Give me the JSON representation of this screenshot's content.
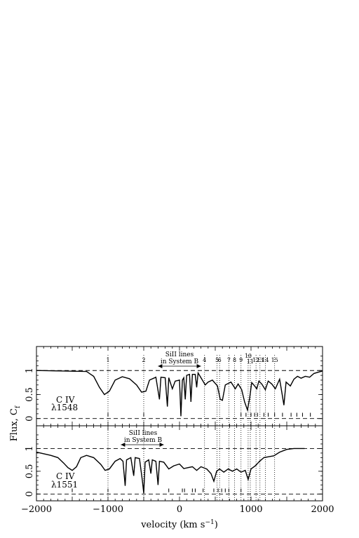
{
  "chart_data": {
    "type": "line",
    "xlabel": "velocity (km s",
    "xlabel_sup": "−1",
    "xlabel_close": ")",
    "ylabel": "Flux, C",
    "ylabel_sub": "f",
    "xlim": [
      -2000,
      2000
    ],
    "x_ticks": [
      -2000,
      -1000,
      0,
      1000,
      2000
    ],
    "x_tick_labels": [
      "−2000",
      "−1000",
      "0",
      "1000",
      "2000"
    ],
    "components": [
      {
        "label": "1",
        "v": -1000
      },
      {
        "label": "2",
        "v": -500
      },
      {
        "label": "4",
        "v": 350
      },
      {
        "label": "5",
        "v": 525
      },
      {
        "label": "6",
        "v": 560
      },
      {
        "label": "7",
        "v": 690
      },
      {
        "label": "8",
        "v": 770
      },
      {
        "label": "9",
        "v": 860
      },
      {
        "label": "10",
        "v": 960
      },
      {
        "label": "11",
        "v": 990
      },
      {
        "label": "12",
        "v": 1070
      },
      {
        "label": "13",
        "v": 1125
      },
      {
        "label": "14",
        "v": 1200
      },
      {
        "label": "15",
        "v": 1330
      }
    ],
    "panels": [
      {
        "name": "top",
        "ion": "C IV",
        "line": "λ1548",
        "ylim": [
          -0.15,
          1.5
        ],
        "y_ticks": [
          0,
          0.5,
          1
        ],
        "y_tick_labels": [
          "0",
          "0.5",
          "1"
        ],
        "annotation_line1": "SiII lines",
        "annotation_line2": "in System B",
        "annotation_range": [
          -300,
          300
        ],
        "ticks_v": [
          -1000,
          -500,
          860,
          930,
          1000,
          1050,
          1090,
          1180,
          1240,
          1330,
          1440,
          1560,
          1640,
          1720,
          1830
        ],
        "spectrum": [
          [
            -2000,
            1.0
          ],
          [
            -1300,
            0.98
          ],
          [
            -1200,
            0.88
          ],
          [
            -1120,
            0.65
          ],
          [
            -1050,
            0.5
          ],
          [
            -980,
            0.57
          ],
          [
            -900,
            0.8
          ],
          [
            -800,
            0.87
          ],
          [
            -700,
            0.83
          ],
          [
            -600,
            0.7
          ],
          [
            -530,
            0.55
          ],
          [
            -470,
            0.57
          ],
          [
            -420,
            0.8
          ],
          [
            -330,
            0.86
          ],
          [
            -280,
            0.4
          ],
          [
            -260,
            0.86
          ],
          [
            -200,
            0.85
          ],
          [
            -170,
            0.25
          ],
          [
            -150,
            0.85
          ],
          [
            -100,
            0.62
          ],
          [
            -60,
            0.78
          ],
          [
            0,
            0.8
          ],
          [
            20,
            0.05
          ],
          [
            40,
            0.8
          ],
          [
            60,
            0.85
          ],
          [
            80,
            0.4
          ],
          [
            100,
            0.9
          ],
          [
            140,
            0.92
          ],
          [
            160,
            0.35
          ],
          [
            180,
            0.92
          ],
          [
            220,
            0.92
          ],
          [
            240,
            0.65
          ],
          [
            260,
            0.95
          ],
          [
            300,
            0.85
          ],
          [
            360,
            0.7
          ],
          [
            400,
            0.76
          ],
          [
            460,
            0.8
          ],
          [
            530,
            0.68
          ],
          [
            570,
            0.4
          ],
          [
            600,
            0.38
          ],
          [
            640,
            0.7
          ],
          [
            720,
            0.76
          ],
          [
            780,
            0.62
          ],
          [
            820,
            0.72
          ],
          [
            870,
            0.6
          ],
          [
            910,
            0.35
          ],
          [
            950,
            0.18
          ],
          [
            980,
            0.42
          ],
          [
            1010,
            0.75
          ],
          [
            1050,
            0.68
          ],
          [
            1080,
            0.62
          ],
          [
            1110,
            0.78
          ],
          [
            1150,
            0.72
          ],
          [
            1200,
            0.6
          ],
          [
            1240,
            0.78
          ],
          [
            1290,
            0.72
          ],
          [
            1340,
            0.62
          ],
          [
            1400,
            0.82
          ],
          [
            1430,
            0.55
          ],
          [
            1460,
            0.28
          ],
          [
            1490,
            0.76
          ],
          [
            1550,
            0.68
          ],
          [
            1600,
            0.82
          ],
          [
            1650,
            0.88
          ],
          [
            1700,
            0.84
          ],
          [
            1760,
            0.88
          ],
          [
            1820,
            0.86
          ],
          [
            1880,
            0.94
          ],
          [
            1950,
            0.97
          ],
          [
            2000,
            0.99
          ]
        ]
      },
      {
        "name": "bottom",
        "ion": "C IV",
        "line": "λ1551",
        "ylim": [
          -0.15,
          1.5
        ],
        "y_ticks": [
          0,
          0.5,
          1
        ],
        "y_tick_labels": [
          "0",
          "0.5",
          "1"
        ],
        "annotation_line1": "SiII lines",
        "annotation_line2": "in System B",
        "annotation_range": [
          -820,
          -220
        ],
        "ticks_v": [
          -1500,
          -1000,
          -500,
          -150,
          40,
          70,
          180,
          220,
          330,
          480,
          540,
          590,
          640,
          690,
          860
        ],
        "spectrum": [
          [
            -2000,
            0.92
          ],
          [
            -1800,
            0.85
          ],
          [
            -1700,
            0.8
          ],
          [
            -1620,
            0.68
          ],
          [
            -1560,
            0.58
          ],
          [
            -1500,
            0.52
          ],
          [
            -1440,
            0.6
          ],
          [
            -1380,
            0.8
          ],
          [
            -1300,
            0.85
          ],
          [
            -1200,
            0.8
          ],
          [
            -1100,
            0.65
          ],
          [
            -1040,
            0.52
          ],
          [
            -980,
            0.55
          ],
          [
            -900,
            0.72
          ],
          [
            -830,
            0.78
          ],
          [
            -790,
            0.72
          ],
          [
            -760,
            0.18
          ],
          [
            -740,
            0.75
          ],
          [
            -680,
            0.8
          ],
          [
            -640,
            0.4
          ],
          [
            -620,
            0.8
          ],
          [
            -560,
            0.78
          ],
          [
            -520,
            0.3
          ],
          [
            -500,
            0.02
          ],
          [
            -480,
            0.7
          ],
          [
            -430,
            0.75
          ],
          [
            -400,
            0.45
          ],
          [
            -380,
            0.75
          ],
          [
            -330,
            0.72
          ],
          [
            -300,
            0.2
          ],
          [
            -280,
            0.72
          ],
          [
            -220,
            0.7
          ],
          [
            -150,
            0.55
          ],
          [
            -80,
            0.62
          ],
          [
            0,
            0.66
          ],
          [
            60,
            0.56
          ],
          [
            120,
            0.58
          ],
          [
            180,
            0.6
          ],
          [
            240,
            0.52
          ],
          [
            300,
            0.6
          ],
          [
            380,
            0.55
          ],
          [
            440,
            0.45
          ],
          [
            480,
            0.28
          ],
          [
            520,
            0.5
          ],
          [
            560,
            0.55
          ],
          [
            620,
            0.48
          ],
          [
            680,
            0.55
          ],
          [
            740,
            0.5
          ],
          [
            800,
            0.55
          ],
          [
            860,
            0.48
          ],
          [
            920,
            0.52
          ],
          [
            960,
            0.32
          ],
          [
            1000,
            0.55
          ],
          [
            1060,
            0.62
          ],
          [
            1120,
            0.72
          ],
          [
            1180,
            0.8
          ],
          [
            1250,
            0.82
          ],
          [
            1320,
            0.84
          ],
          [
            1400,
            0.92
          ],
          [
            1500,
            0.98
          ],
          [
            1600,
            1.0
          ],
          [
            1700,
            1.0
          ],
          [
            1750,
            1.0
          ]
        ]
      }
    ]
  }
}
